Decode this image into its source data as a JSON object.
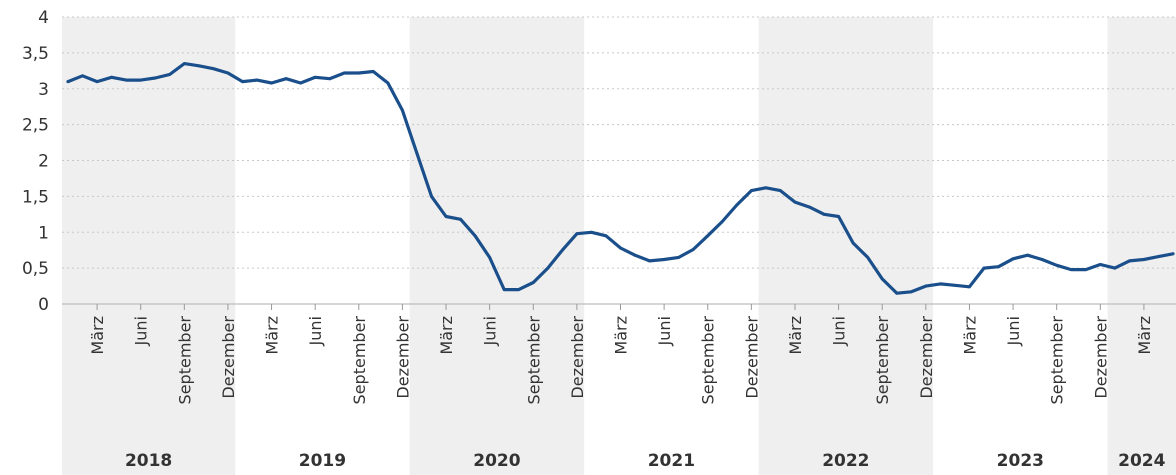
{
  "chart_data": {
    "type": "line",
    "y_ticks": [
      "0",
      "0,5",
      "1",
      "1,5",
      "2",
      "2,5",
      "3",
      "3,5",
      "4"
    ],
    "ylim": [
      0,
      4
    ],
    "grid": true,
    "month_labels": [
      "März",
      "Juni",
      "September",
      "Dezember"
    ],
    "years": [
      "2018",
      "2019",
      "2020",
      "2021",
      "2022",
      "2023",
      "2024"
    ],
    "year_shading": [
      true,
      false,
      true,
      false,
      true,
      false,
      true
    ],
    "x_start": "2018-01",
    "x_end": "2024-05",
    "series": [
      {
        "color": "#1a4f8b",
        "x": [
          "2018-01",
          "2018-02",
          "2018-03",
          "2018-04",
          "2018-05",
          "2018-06",
          "2018-07",
          "2018-08",
          "2018-09",
          "2018-10",
          "2018-11",
          "2018-12",
          "2019-01",
          "2019-02",
          "2019-03",
          "2019-04",
          "2019-05",
          "2019-06",
          "2019-07",
          "2019-08",
          "2019-09",
          "2019-10",
          "2019-11",
          "2019-12",
          "2020-01",
          "2020-02",
          "2020-03",
          "2020-04",
          "2020-05",
          "2020-06",
          "2020-07",
          "2020-08",
          "2020-09",
          "2020-10",
          "2020-11",
          "2020-12",
          "2021-01",
          "2021-02",
          "2021-03",
          "2021-04",
          "2021-05",
          "2021-06",
          "2021-07",
          "2021-08",
          "2021-09",
          "2021-10",
          "2021-11",
          "2021-12",
          "2022-01",
          "2022-02",
          "2022-03",
          "2022-04",
          "2022-05",
          "2022-06",
          "2022-07",
          "2022-08",
          "2022-09",
          "2022-10",
          "2022-11",
          "2022-12",
          "2023-01",
          "2023-02",
          "2023-03",
          "2023-04",
          "2023-05",
          "2023-06",
          "2023-07",
          "2023-08",
          "2023-09",
          "2023-10",
          "2023-11",
          "2023-12",
          "2024-01",
          "2024-02",
          "2024-03",
          "2024-04",
          "2024-05"
        ],
        "values": [
          3.1,
          3.18,
          3.1,
          3.16,
          3.12,
          3.12,
          3.15,
          3.2,
          3.35,
          3.32,
          3.28,
          3.22,
          3.1,
          3.12,
          3.08,
          3.14,
          3.08,
          3.16,
          3.14,
          3.22,
          3.22,
          3.24,
          3.08,
          2.7,
          2.1,
          1.5,
          1.22,
          1.18,
          0.95,
          0.65,
          0.2,
          0.2,
          0.3,
          0.5,
          0.75,
          0.98,
          1.0,
          0.95,
          0.78,
          0.68,
          0.6,
          0.62,
          0.65,
          0.76,
          0.95,
          1.15,
          1.38,
          1.58,
          1.62,
          1.58,
          1.42,
          1.35,
          1.25,
          1.22,
          0.85,
          0.65,
          0.35,
          0.15,
          0.17,
          0.25,
          0.28,
          0.26,
          0.24,
          0.5,
          0.52,
          0.63,
          0.68,
          0.62,
          0.54,
          0.48,
          0.48,
          0.55,
          0.5,
          0.6,
          0.62,
          0.66,
          0.7
        ]
      }
    ]
  }
}
